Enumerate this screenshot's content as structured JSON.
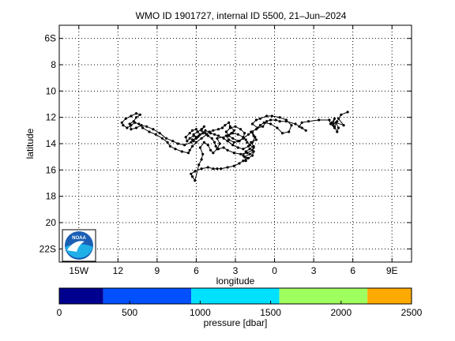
{
  "chart_data": {
    "type": "scatter",
    "title": "WMO ID 1901727, internal ID 5500, 21–Jun–2024",
    "xlabel": "longitude",
    "ylabel": "latitude",
    "xlim": [
      -16.5,
      10.5
    ],
    "ylim": [
      -23,
      -5
    ],
    "x_ticks": [
      -15,
      -12,
      -9,
      -6,
      -3,
      0,
      3,
      6,
      9
    ],
    "x_tick_labels": [
      "15W",
      "12",
      "9",
      "6",
      "3",
      "0",
      "3",
      "6",
      "9E"
    ],
    "y_ticks": [
      -6,
      -8,
      -10,
      -12,
      -14,
      -16,
      -18,
      -20,
      -22
    ],
    "y_tick_labels": [
      "6S",
      "8",
      "10",
      "12",
      "14",
      "16",
      "18",
      "20",
      "22S"
    ],
    "grid": true,
    "grid_style": "dotted",
    "marker_color": "#000000",
    "series": [
      {
        "x": [
          5.6,
          5.1,
          4.9,
          5.3,
          4.7,
          4.9,
          4.8,
          4.6,
          4.8,
          4.5,
          4.6,
          4.4,
          4.6,
          4.3,
          4.2,
          3.4,
          2.6,
          2.1,
          1.9,
          2.4,
          2.1,
          1.6,
          0.9,
          0.4,
          0.1,
          -0.3,
          -0.6,
          -0.9,
          -1.3,
          -1.7,
          -1.4,
          -1.1,
          -0.6,
          -0.2,
          0.4,
          0.9,
          1.3,
          1.1,
          0.6,
          0.2,
          -0.3,
          -0.8,
          -1.1,
          -1.4,
          -1.8,
          -1.6,
          -1.4,
          -1.8,
          -1.6,
          -1.9,
          -2.2,
          -2.4,
          -2.1,
          -2.2,
          -2.3,
          -1.9,
          -1.6,
          -1.7,
          -2.0,
          -2.4,
          -2.7,
          -3.1,
          -3.6,
          -4.1,
          -4.4,
          -4.7,
          -5.1,
          -5.6,
          -6.1,
          -6.4,
          -6.3,
          -6.1,
          -5.8,
          -5.6,
          -5.5,
          -5.7,
          -5.4,
          -5.1,
          -4.9,
          -4.7,
          -4.4,
          -4.2,
          -4.4,
          -3.6,
          -3.2,
          -2.8,
          -2.4,
          -2.2,
          -2.1,
          -1.9,
          -1.6,
          -1.7,
          -2.1,
          -2.6,
          -3.1,
          -3.6,
          -3.9,
          -4.3,
          -4.5,
          -4.6,
          -4.8,
          -5.1,
          -5.3,
          -5.6,
          -5.4,
          -5.6,
          -5.9,
          -5.7,
          -5.9,
          -6.2,
          -6.5,
          -6.7,
          -6.8,
          -6.5,
          -6.3,
          -6.0,
          -5.9,
          -6.2,
          -6.0,
          -6.4,
          -6.9,
          -7.4,
          -7.8,
          -8.3,
          -8.8,
          -9.3,
          -9.8,
          -10.2,
          -10.6,
          -11.0,
          -11.1,
          -10.8,
          -10.6,
          -10.3,
          -10.6,
          -11.0,
          -11.4,
          -11.7,
          -11.6,
          -11.3,
          -11.0,
          -10.7,
          -10.4,
          -10.1,
          -9.6,
          -9.1,
          -8.6,
          -8.2,
          -8.0,
          -7.6,
          -7.1,
          -6.6,
          -6.5,
          -6.3,
          -6.0,
          -5.6,
          -5.2,
          -5.0,
          -4.7,
          -4.3,
          -4.0,
          -3.8,
          -3.5,
          -3.4,
          -3.1,
          -3.3,
          -3.7,
          -3.5,
          -3.1,
          -2.7,
          -2.4,
          -2.3,
          -2.6,
          -3.0,
          -3.4,
          -3.7,
          -3.5,
          -3.2,
          -2.8,
          -2.4,
          -2.0,
          -1.7,
          -1.5,
          -1.7,
          -2.0,
          -2.4,
          -2.8,
          -3.2,
          -3.6,
          -3.9,
          -4.3,
          -4.6,
          -4.9,
          -5.3,
          -5.5,
          -5.8,
          -6.0,
          -6.2,
          -6.3
        ],
        "y": [
          -11.6,
          -11.8,
          -12.1,
          -12.6,
          -12.4,
          -12.8,
          -13.1,
          -12.7,
          -12.3,
          -12.5,
          -12.1,
          -12.4,
          -12.8,
          -12.5,
          -12.2,
          -12.2,
          -12.3,
          -12.4,
          -12.7,
          -13.0,
          -12.8,
          -12.5,
          -12.3,
          -12.3,
          -12.2,
          -12.2,
          -12.3,
          -12.7,
          -12.8,
          -12.5,
          -12.2,
          -12.1,
          -11.9,
          -11.9,
          -12.0,
          -12.2,
          -12.6,
          -13.1,
          -13.2,
          -12.8,
          -12.5,
          -12.4,
          -12.6,
          -12.9,
          -13.1,
          -13.4,
          -13.7,
          -13.9,
          -14.2,
          -14.4,
          -14.6,
          -14.9,
          -15.1,
          -15.3,
          -15.0,
          -14.8,
          -14.6,
          -14.9,
          -15.1,
          -15.3,
          -15.5,
          -15.7,
          -15.8,
          -15.9,
          -15.9,
          -15.9,
          -15.8,
          -15.9,
          -16.1,
          -16.3,
          -16.5,
          -16.8,
          -15.6,
          -15.2,
          -14.8,
          -14.3,
          -13.9,
          -14.1,
          -14.5,
          -14.7,
          -14.4,
          -14.0,
          -13.6,
          -13.4,
          -13.2,
          -13.3,
          -13.5,
          -13.7,
          -13.9,
          -14.1,
          -14.3,
          -14.5,
          -14.7,
          -14.8,
          -14.7,
          -14.5,
          -14.3,
          -14.4,
          -14.2,
          -13.9,
          -13.6,
          -13.4,
          -13.2,
          -13.0,
          -12.7,
          -12.9,
          -13.1,
          -13.3,
          -13.5,
          -13.4,
          -13.6,
          -13.8,
          -13.5,
          -13.2,
          -13.0,
          -12.9,
          -13.1,
          -13.3,
          -13.5,
          -13.9,
          -14.1,
          -14.0,
          -13.8,
          -13.6,
          -13.2,
          -12.9,
          -12.7,
          -12.6,
          -12.8,
          -12.9,
          -12.5,
          -12.3,
          -12.0,
          -11.8,
          -11.7,
          -11.9,
          -12.1,
          -12.4,
          -12.6,
          -12.8,
          -12.6,
          -12.4,
          -12.5,
          -12.8,
          -13.1,
          -13.3,
          -13.6,
          -13.9,
          -14.2,
          -14.4,
          -14.6,
          -14.7,
          -14.5,
          -14.2,
          -13.9,
          -13.6,
          -13.3,
          -13.1,
          -13.0,
          -12.9,
          -12.8,
          -12.6,
          -12.4,
          -12.7,
          -13.0,
          -13.2,
          -13.4,
          -13.7,
          -13.9,
          -13.8,
          -13.6,
          -13.2,
          -12.9,
          -12.7,
          -12.8,
          -13.1,
          -13.4,
          -13.6,
          -13.8,
          -13.6,
          -13.3,
          -13.1,
          -13.5,
          -13.9,
          -14.2,
          -14.4,
          -14.3,
          -14.1,
          -13.8,
          -13.6,
          -13.4,
          -13.3,
          -13.2,
          -13.0,
          -13.2,
          -13.4,
          -13.6,
          -13.8,
          -13.7
        ]
      }
    ],
    "colorbar": {
      "label": "pressure [dbar]",
      "ticks": [
        0,
        500,
        1000,
        1500,
        2000,
        2500
      ],
      "range": [
        0,
        2500
      ],
      "segments": [
        {
          "from": 0,
          "to": 312,
          "color": "#00008f"
        },
        {
          "from": 312,
          "to": 937,
          "color": "#0050ff"
        },
        {
          "from": 937,
          "to": 1562,
          "color": "#00e0ff"
        },
        {
          "from": 1562,
          "to": 2187,
          "color": "#9fff5f"
        },
        {
          "from": 2187,
          "to": 2500,
          "color": "#ffaa00"
        }
      ]
    }
  },
  "logo": {
    "text": "NOAA",
    "colors": {
      "sky": "#1a5fb4",
      "sea": "#1fb0e8",
      "gull": "#ffffff"
    }
  }
}
